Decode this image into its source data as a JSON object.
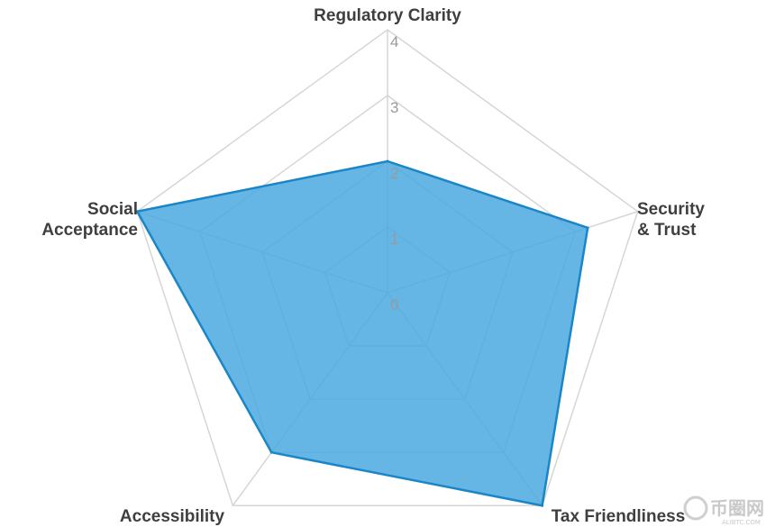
{
  "chart_data": {
    "type": "radar",
    "axes": [
      "Regulatory Clarity",
      "Security & Trust",
      "Tax Friendliness",
      "Accessibility",
      "Social Acceptance"
    ],
    "axis_label_lines": [
      [
        "Regulatory Clarity"
      ],
      [
        "Security",
        "& Trust"
      ],
      [
        "Tax Friendliness"
      ],
      [
        "Accessibility"
      ],
      [
        "Social",
        "Acceptance"
      ]
    ],
    "series": [
      {
        "values": [
          2.0,
          3.2,
          4.0,
          3.0,
          4.0
        ]
      }
    ],
    "r_min": 0,
    "r_max": 4,
    "ticks": [
      "0",
      "1",
      "2",
      "3",
      "4"
    ],
    "grid": true,
    "colors": {
      "fill": "#4aa8e0",
      "stroke": "#1a86c8",
      "grid": "#d6d6d6"
    }
  },
  "watermark": {
    "name": "币圈网",
    "sub": "ALIBTC.COM"
  }
}
